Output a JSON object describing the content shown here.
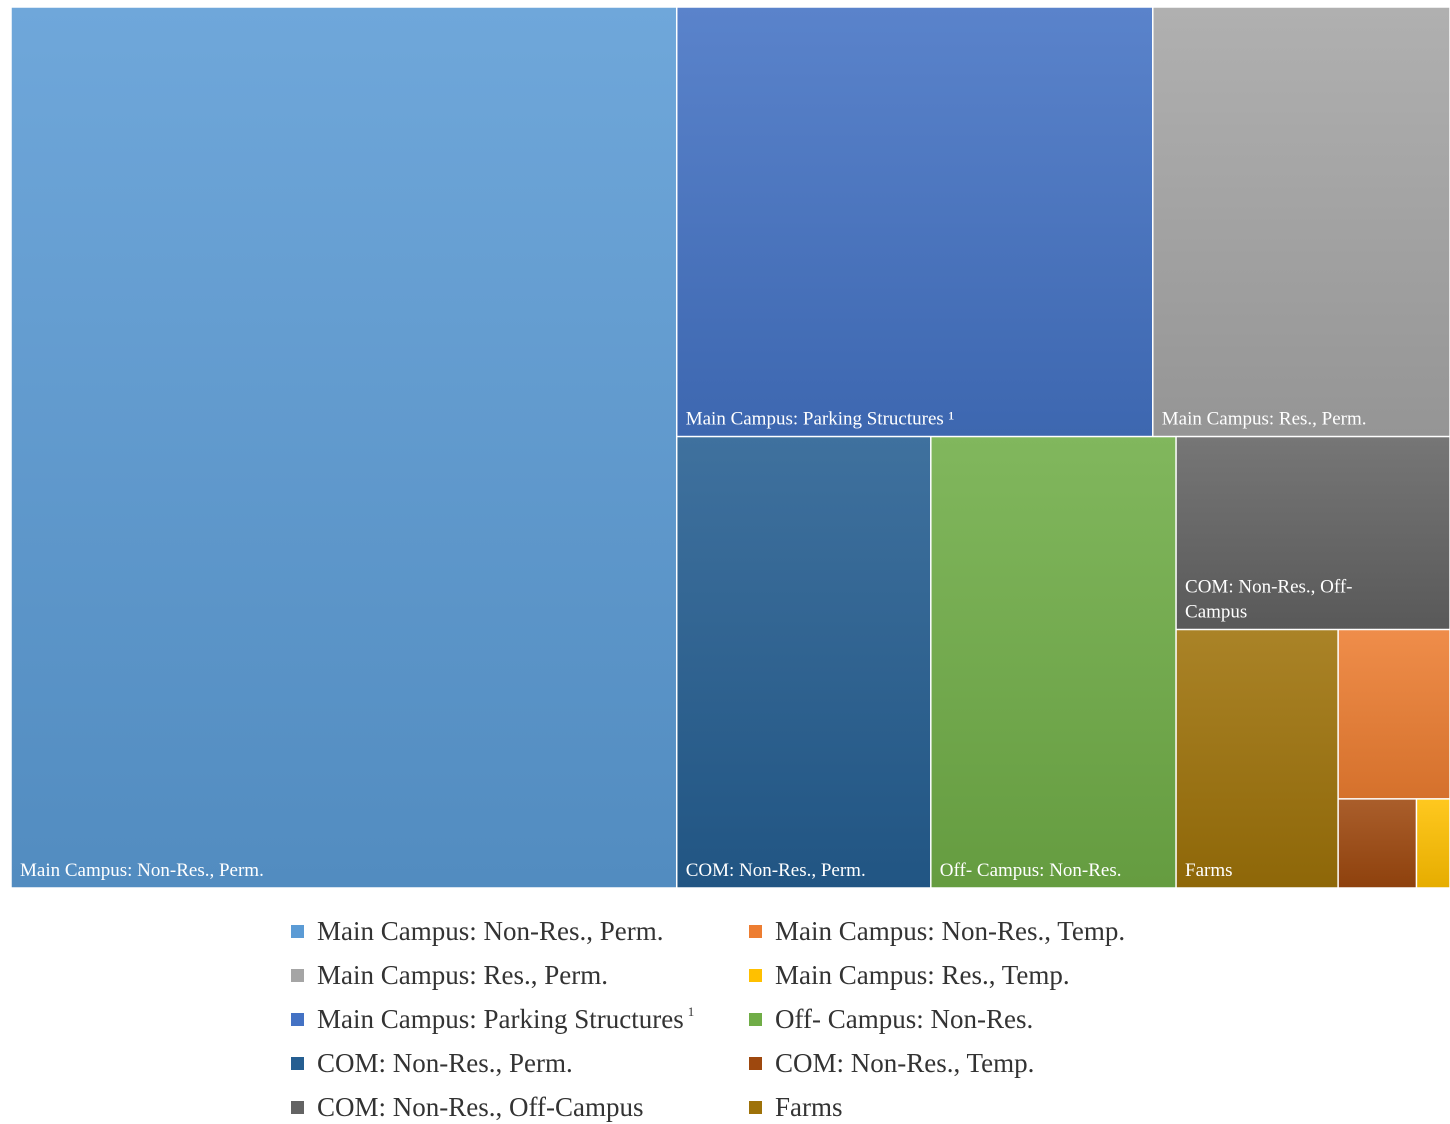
{
  "chart_data": {
    "type": "treemap",
    "title": "",
    "items": [
      {
        "name": "Main Campus: Non-Res., Perm.",
        "label": "Main Campus: Non-Res., Perm.",
        "value": 588,
        "color": "#5b9bd5"
      },
      {
        "name": "Main Campus: Parking Structures ¹",
        "label": "Main Campus: Parking Structures ¹",
        "value": 205,
        "color": "#4472c4"
      },
      {
        "name": "Main Campus: Res., Perm.",
        "label": "Main Campus: Res., Perm.",
        "value": 128,
        "color": "#a5a5a5"
      },
      {
        "name": "COM: Non-Res., Perm.",
        "label": "COM: Non-Res., Perm.",
        "value": 115,
        "color": "#255e91"
      },
      {
        "name": "Off- Campus: Non-Res.",
        "label": "Off- Campus: Non-Res.",
        "value": 111,
        "color": "#70ad47"
      },
      {
        "name": "COM: Non-Res., Off-Campus",
        "label": "COM: Non-Res., Off-\nCampus",
        "value": 53,
        "color": "#636363"
      },
      {
        "name": "Farms",
        "label": "Farms",
        "value": 42,
        "color": "#9e7209"
      },
      {
        "name": "Main Campus: Non-Res., Temp.",
        "label": "",
        "value": 19,
        "color": "#ed7d31"
      },
      {
        "name": "COM: Non-Res., Temp.",
        "label": "",
        "value": 7,
        "color": "#9e480e"
      },
      {
        "name": "Main Campus: Res., Temp.",
        "label": "",
        "value": 3,
        "color": "#ffc000"
      }
    ],
    "legend": {
      "position": "bottom",
      "columns": [
        [
          {
            "label": "Main Campus: Non-Res., Perm.",
            "color": "#5b9bd5"
          },
          {
            "label": "Main Campus: Res., Perm.",
            "color": "#a5a5a5"
          },
          {
            "label": "Main Campus: Parking Structures",
            "sup": "1",
            "color": "#4472c4"
          },
          {
            "label": "COM: Non-Res., Perm.",
            "color": "#255e91"
          },
          {
            "label": "COM: Non-Res., Off-Campus",
            "color": "#636363"
          }
        ],
        [
          {
            "label": "Main Campus: Non-Res., Temp.",
            "color": "#ed7d31"
          },
          {
            "label": "Main Campus: Res., Temp.",
            "color": "#ffc000"
          },
          {
            "label": "Off- Campus: Non-Res.",
            "color": "#70ad47"
          },
          {
            "label": "COM: Non-Res., Temp.",
            "color": "#9e480e"
          },
          {
            "label": "Farms",
            "color": "#9e7209"
          }
        ]
      ]
    }
  }
}
